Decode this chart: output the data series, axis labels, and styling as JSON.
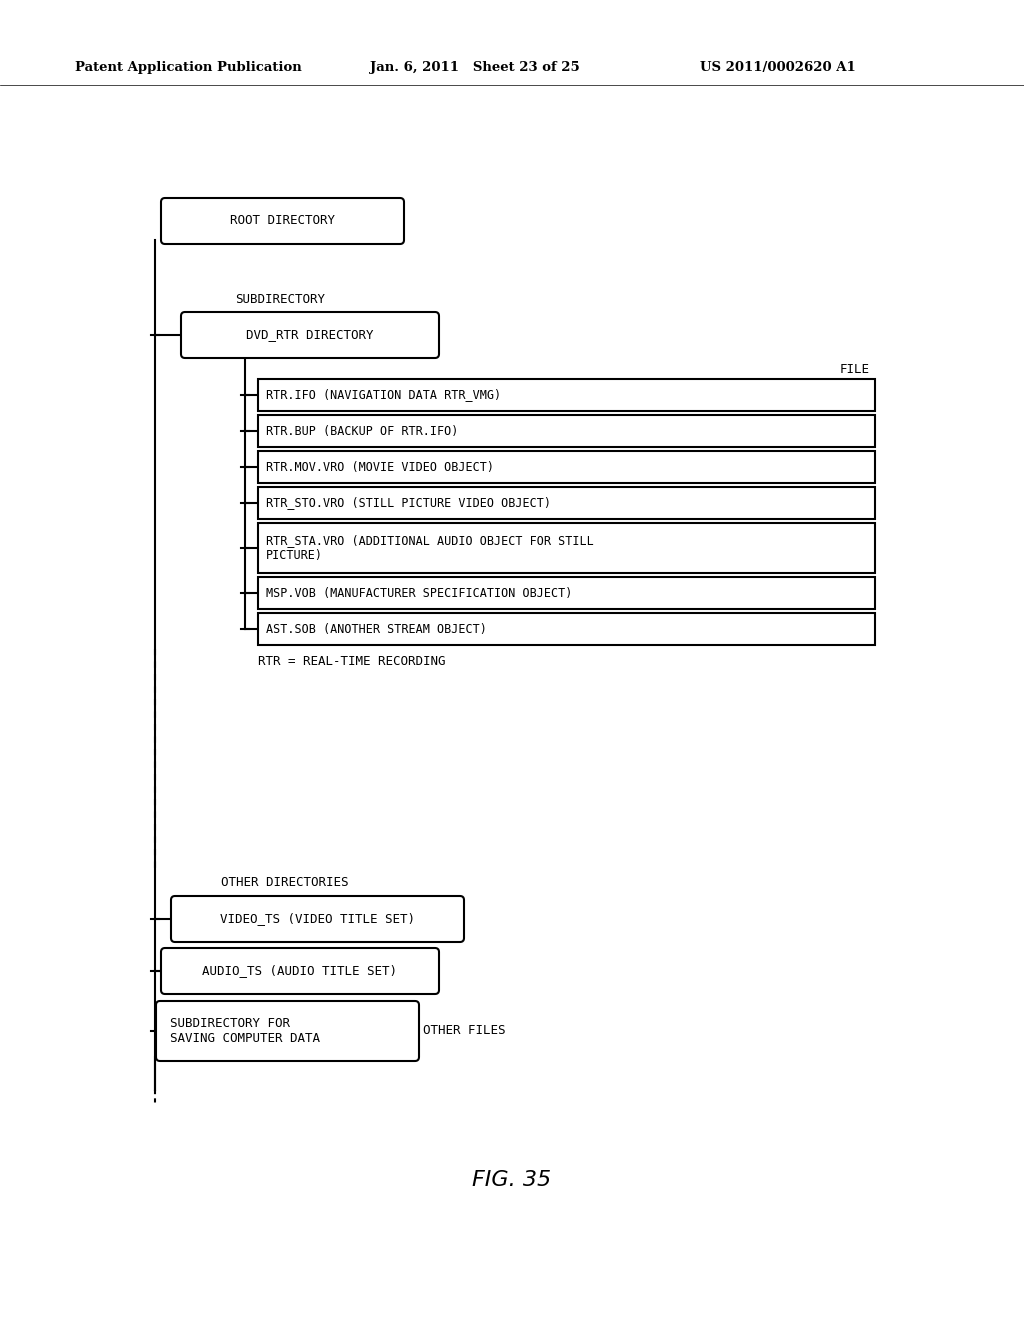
{
  "header_left": "Patent Application Publication",
  "header_mid": "Jan. 6, 2011   Sheet 23 of 25",
  "header_right": "US 2011/0002620 A1",
  "figure_label": "FIG. 35",
  "background_color": "#ffffff",
  "text_color": "#000000",
  "font_family": "monospace"
}
